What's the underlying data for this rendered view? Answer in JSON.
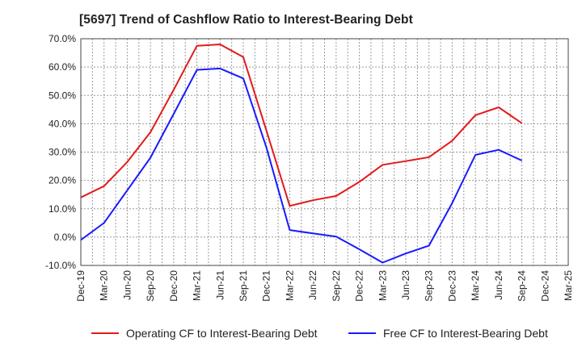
{
  "chart_data": {
    "type": "line",
    "title": "[5697]  Trend of Cashflow Ratio to Interest-Bearing Debt",
    "xlabel": "",
    "ylabel": "",
    "ylim": [
      -10,
      70
    ],
    "yticks": [
      -10,
      0,
      10,
      20,
      30,
      40,
      50,
      60,
      70
    ],
    "ytick_labels": [
      "-10.0%",
      "0.0%",
      "10.0%",
      "20.0%",
      "30.0%",
      "40.0%",
      "50.0%",
      "60.0%",
      "70.0%"
    ],
    "categories": [
      "Dec-19",
      "Mar-20",
      "Jun-20",
      "Sep-20",
      "Dec-20",
      "Mar-21",
      "Jun-21",
      "Sep-21",
      "Dec-21",
      "Mar-22",
      "Jun-22",
      "Sep-22",
      "Dec-22",
      "Mar-23",
      "Jun-23",
      "Sep-23",
      "Dec-23",
      "Mar-24",
      "Jun-24",
      "Sep-24",
      "Dec-24",
      "Mar-25"
    ],
    "grid": true,
    "legend_position": "bottom",
    "series": [
      {
        "name": "Operating CF to Interest-Bearing Debt",
        "color": "#e31a1c",
        "values": [
          14.0,
          18.0,
          26.5,
          37.0,
          52.0,
          67.5,
          68.0,
          63.5,
          37.5,
          11.0,
          13.0,
          14.5,
          19.5,
          25.5,
          26.8,
          28.2,
          34.0,
          43.0,
          45.8,
          40.2,
          null,
          null
        ]
      },
      {
        "name": "Free CF to Interest-Bearing Debt",
        "color": "#1a1aff",
        "values": [
          -1.0,
          5.0,
          16.5,
          28.0,
          43.5,
          59.0,
          59.5,
          56.0,
          31.5,
          2.5,
          1.3,
          0.2,
          -4.3,
          -9.0,
          -5.8,
          -3.0,
          12.0,
          29.0,
          30.8,
          27.0,
          null,
          null
        ]
      }
    ]
  }
}
